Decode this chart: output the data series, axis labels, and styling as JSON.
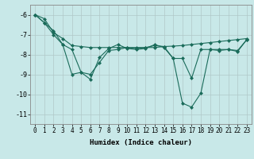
{
  "xlabel": "Humidex (Indice chaleur)",
  "ylabel": "",
  "background_color": "#c8e8e8",
  "grid_color": "#b0c8c8",
  "line_color": "#1a6b5a",
  "x": [
    0,
    1,
    2,
    3,
    4,
    5,
    6,
    7,
    8,
    9,
    10,
    11,
    12,
    13,
    14,
    15,
    16,
    17,
    18,
    19,
    20,
    21,
    22,
    23
  ],
  "y_line1": [
    -6.0,
    -6.2,
    -6.9,
    -7.2,
    -7.55,
    -7.6,
    -7.65,
    -7.65,
    -7.65,
    -7.65,
    -7.65,
    -7.65,
    -7.65,
    -7.65,
    -7.6,
    -7.58,
    -7.55,
    -7.5,
    -7.45,
    -7.4,
    -7.35,
    -7.3,
    -7.25,
    -7.2
  ],
  "y_line2": [
    -6.0,
    -6.4,
    -7.0,
    -7.5,
    -7.75,
    -8.9,
    -9.0,
    -8.4,
    -7.8,
    -7.75,
    -7.65,
    -7.7,
    -7.65,
    -7.55,
    -7.6,
    -8.2,
    -8.2,
    -9.2,
    -7.75,
    -7.75,
    -7.75,
    -7.75,
    -7.8,
    -7.25
  ],
  "y_line3": [
    -6.0,
    -6.4,
    -6.8,
    -7.5,
    -9.0,
    -8.9,
    -9.25,
    -8.15,
    -7.7,
    -7.5,
    -7.7,
    -7.75,
    -7.7,
    -7.5,
    -7.65,
    -8.2,
    -10.45,
    -10.65,
    -9.95,
    -7.75,
    -7.8,
    -7.75,
    -7.85,
    -7.25
  ],
  "xlim": [
    -0.5,
    23.5
  ],
  "ylim": [
    -11.5,
    -5.5
  ],
  "yticks": [
    -6,
    -7,
    -8,
    -9,
    -10,
    -11
  ],
  "xticks": [
    0,
    1,
    2,
    3,
    4,
    5,
    6,
    7,
    8,
    9,
    10,
    11,
    12,
    13,
    14,
    15,
    16,
    17,
    18,
    19,
    20,
    21,
    22,
    23
  ],
  "tick_fontsize": 5.5,
  "xlabel_fontsize": 6.5
}
